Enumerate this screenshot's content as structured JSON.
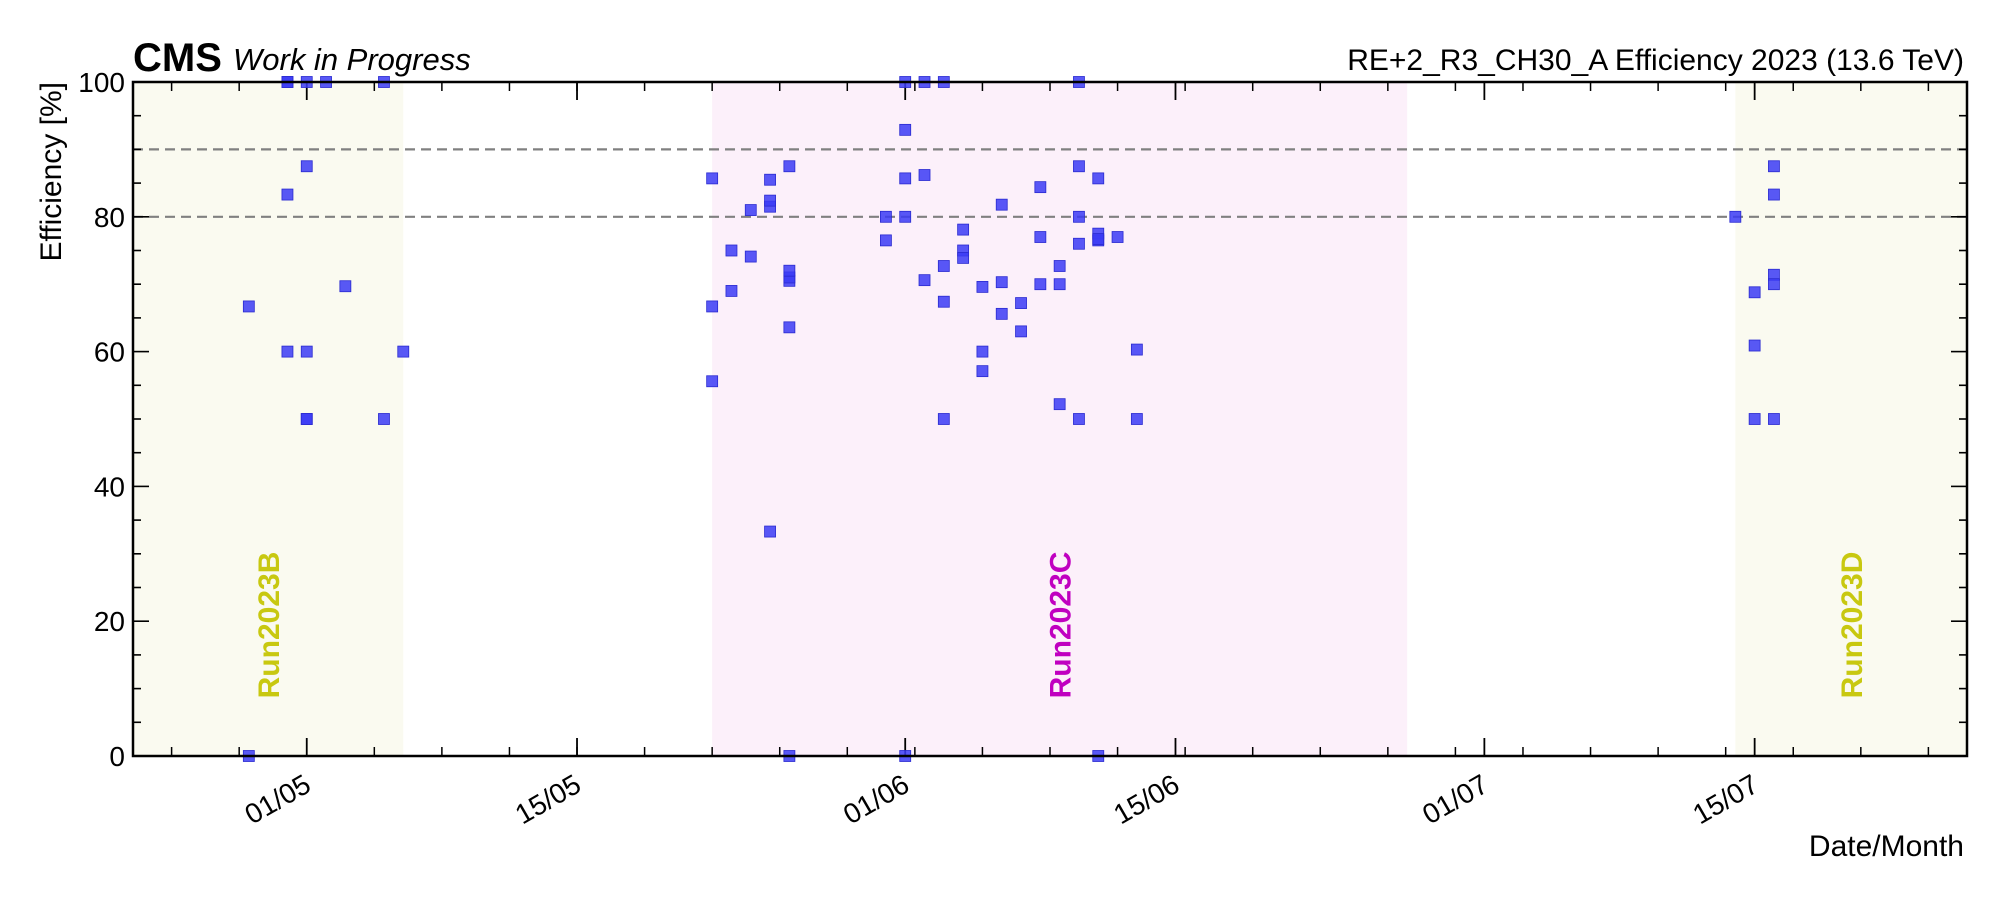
{
  "header": {
    "experiment": "CMS",
    "status": "Work in Progress",
    "title": "RE+2_R3_CH30_A Efficiency 2023 (13.6 TeV)"
  },
  "chart_data": {
    "type": "scatter",
    "xlabel": "Date/Month",
    "ylabel": "Efficiency [%]",
    "xlim": [
      "2023-04-22",
      "2023-07-26"
    ],
    "ylim": [
      0,
      100
    ],
    "x_ticks": [
      {
        "date": "2023-05-01",
        "label": "01/05"
      },
      {
        "date": "2023-05-15",
        "label": "15/05"
      },
      {
        "date": "2023-06-01",
        "label": "01/06"
      },
      {
        "date": "2023-06-15",
        "label": "15/06"
      },
      {
        "date": "2023-07-01",
        "label": "01/07"
      },
      {
        "date": "2023-07-15",
        "label": "15/07"
      }
    ],
    "y_ticks": [
      0,
      20,
      40,
      60,
      80,
      100
    ],
    "reference_lines": [
      90,
      80
    ],
    "colors": {
      "points": "#3b3bf5",
      "run_b": "#c8c810",
      "run_c": "#c000c0",
      "band_b": "#fafaf0",
      "band_c": "#fcf0fa",
      "ref_line": "#808080"
    },
    "runs": [
      {
        "label": "Run2023B",
        "start": "2023-04-22",
        "end": "2023-05-06",
        "band_color": "#fafaf0",
        "text_color": "#c8c810"
      },
      {
        "label": "Run2023C",
        "start": "2023-05-22",
        "end": "2023-06-27",
        "band_color": "#fcf0fa",
        "text_color": "#c000c0"
      },
      {
        "label": "Run2023D",
        "start": "2023-07-14",
        "end": "2023-07-26",
        "band_color": "#fafaf0",
        "text_color": "#c8c810"
      }
    ],
    "series": [
      {
        "points": [
          [
            "2023-04-28",
            66.7
          ],
          [
            "2023-04-28",
            0.0
          ],
          [
            "2023-04-30",
            60.0
          ],
          [
            "2023-04-30",
            100.0
          ],
          [
            "2023-04-30",
            83.3
          ],
          [
            "2023-04-30",
            100.0
          ],
          [
            "2023-05-01",
            60.0
          ],
          [
            "2023-05-01",
            50.0
          ],
          [
            "2023-05-01",
            87.5
          ],
          [
            "2023-05-01",
            50.0
          ],
          [
            "2023-05-01",
            100.0
          ],
          [
            "2023-05-02",
            100.0
          ],
          [
            "2023-05-03",
            69.7
          ],
          [
            "2023-05-05",
            100.0
          ],
          [
            "2023-05-05",
            50.0
          ],
          [
            "2023-05-06",
            60.0
          ],
          [
            "2023-05-22",
            85.7
          ],
          [
            "2023-05-22",
            66.7
          ],
          [
            "2023-05-22",
            55.6
          ],
          [
            "2023-05-23",
            75.0
          ],
          [
            "2023-05-23",
            69.0
          ],
          [
            "2023-05-24",
            81.0
          ],
          [
            "2023-05-24",
            74.1
          ],
          [
            "2023-05-25",
            33.3
          ],
          [
            "2023-05-25",
            85.5
          ],
          [
            "2023-05-25",
            81.5
          ],
          [
            "2023-05-25",
            82.4
          ],
          [
            "2023-05-26",
            70.5
          ],
          [
            "2023-05-26",
            0.0
          ],
          [
            "2023-05-26",
            87.5
          ],
          [
            "2023-05-26",
            63.6
          ],
          [
            "2023-05-26",
            71.0
          ],
          [
            "2023-05-26",
            72.0
          ],
          [
            "2023-05-31",
            80.0
          ],
          [
            "2023-05-31",
            76.5
          ],
          [
            "2023-06-01",
            92.9
          ],
          [
            "2023-06-01",
            85.7
          ],
          [
            "2023-06-01",
            80.0
          ],
          [
            "2023-06-01",
            100.0
          ],
          [
            "2023-06-01",
            0.0
          ],
          [
            "2023-06-02",
            70.6
          ],
          [
            "2023-06-02",
            86.2
          ],
          [
            "2023-06-02",
            100.0
          ],
          [
            "2023-06-03",
            67.4
          ],
          [
            "2023-06-03",
            100.0
          ],
          [
            "2023-06-03",
            50.0
          ],
          [
            "2023-06-03",
            72.7
          ],
          [
            "2023-06-04",
            75.0
          ],
          [
            "2023-06-04",
            73.9
          ],
          [
            "2023-06-04",
            78.1
          ],
          [
            "2023-06-05",
            57.1
          ],
          [
            "2023-06-05",
            69.6
          ],
          [
            "2023-06-05",
            60.0
          ],
          [
            "2023-06-06",
            81.8
          ],
          [
            "2023-06-06",
            70.3
          ],
          [
            "2023-06-06",
            65.6
          ],
          [
            "2023-06-07",
            63.0
          ],
          [
            "2023-06-07",
            67.2
          ],
          [
            "2023-06-08",
            84.4
          ],
          [
            "2023-06-08",
            77.0
          ],
          [
            "2023-06-08",
            70.0
          ],
          [
            "2023-06-09",
            72.7
          ],
          [
            "2023-06-09",
            70.0
          ],
          [
            "2023-06-09",
            52.2
          ],
          [
            "2023-06-10",
            87.5
          ],
          [
            "2023-06-10",
            50.0
          ],
          [
            "2023-06-10",
            100.0
          ],
          [
            "2023-06-10",
            76.0
          ],
          [
            "2023-06-10",
            80.0
          ],
          [
            "2023-06-11",
            77.5
          ],
          [
            "2023-06-11",
            76.5
          ],
          [
            "2023-06-11",
            76.7
          ],
          [
            "2023-06-11",
            0.0
          ],
          [
            "2023-06-11",
            85.7
          ],
          [
            "2023-06-12",
            77.0
          ],
          [
            "2023-06-13",
            60.3
          ],
          [
            "2023-06-13",
            50.0
          ],
          [
            "2023-07-14",
            80.0
          ],
          [
            "2023-07-15",
            50.0
          ],
          [
            "2023-07-15",
            60.9
          ],
          [
            "2023-07-15",
            68.8
          ],
          [
            "2023-07-16",
            83.3
          ],
          [
            "2023-07-16",
            71.4
          ],
          [
            "2023-07-16",
            87.5
          ],
          [
            "2023-07-16",
            70.0
          ],
          [
            "2023-07-16",
            50.0
          ]
        ]
      }
    ]
  }
}
